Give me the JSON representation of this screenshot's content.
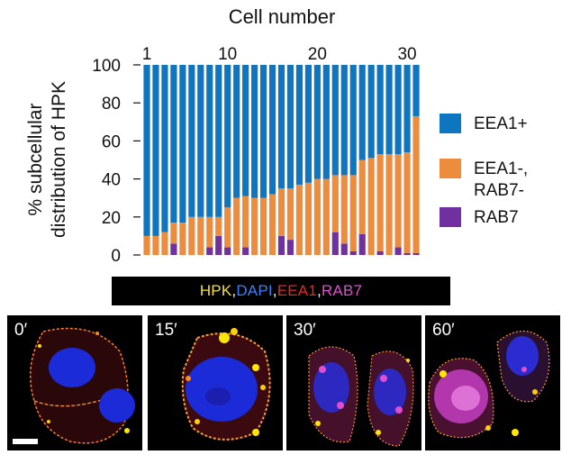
{
  "chart_data": {
    "type": "bar",
    "stacked": true,
    "title": "Cell number",
    "ylabel_lines": [
      "% subcellular",
      "distribution of HPK"
    ],
    "ylim": [
      0,
      100
    ],
    "yticks": [
      0,
      20,
      40,
      60,
      80,
      100
    ],
    "top_ticks": [
      1,
      10,
      20,
      30
    ],
    "categories": [
      1,
      2,
      3,
      4,
      5,
      6,
      7,
      8,
      9,
      10,
      11,
      12,
      13,
      14,
      15,
      16,
      17,
      18,
      19,
      20,
      21,
      22,
      23,
      24,
      25,
      26,
      27,
      28,
      29,
      30,
      31
    ],
    "series": [
      {
        "name": "RAB7",
        "color": "#7030a0",
        "values": [
          0,
          0,
          0,
          6,
          0,
          0,
          0,
          4,
          10,
          4,
          0,
          4,
          0,
          0,
          0,
          10,
          8,
          0,
          0,
          0,
          0,
          12,
          6,
          2,
          11,
          0,
          2,
          0,
          4,
          1,
          1
        ]
      },
      {
        "name": "EEA1-, RAB7-",
        "color": "#ee8c3d",
        "values": [
          10,
          10,
          12,
          11,
          17,
          20,
          20,
          16,
          10,
          21,
          30,
          27,
          30,
          30,
          32,
          25,
          27,
          37,
          38,
          40,
          40,
          30,
          36,
          40,
          39,
          51,
          51,
          53,
          49,
          53,
          72
        ]
      },
      {
        "name": "EEA1+",
        "color": "#0e76c0",
        "values": [
          90,
          90,
          88,
          83,
          83,
          80,
          80,
          80,
          80,
          75,
          70,
          69,
          70,
          70,
          68,
          65,
          65,
          63,
          62,
          60,
          60,
          58,
          58,
          58,
          50,
          49,
          47,
          47,
          47,
          46,
          27
        ]
      }
    ],
    "legend": {
      "placement": "right",
      "entries": [
        {
          "lines": [
            "EEA1+"
          ],
          "color": "#0e76c0"
        },
        {
          "lines": [
            "EEA1-,",
            "RAB7-"
          ],
          "color": "#ee8c3d"
        },
        {
          "lines": [
            "RAB7"
          ],
          "color": "#7030a0"
        }
      ]
    }
  },
  "stain_legend": [
    {
      "text": "HPK",
      "color": "#f3e23a"
    },
    {
      "text": ", ",
      "color": "#ffffff"
    },
    {
      "text": "DAPI",
      "color": "#3b82f6"
    },
    {
      "text": ", ",
      "color": "#ffffff"
    },
    {
      "text": "EEA1",
      "color": "#e12b24"
    },
    {
      "text": ", ",
      "color": "#ffffff"
    },
    {
      "text": "RAB7",
      "color": "#e14fd0"
    }
  ],
  "panels": [
    {
      "label": "0′"
    },
    {
      "label": "15′"
    },
    {
      "label": "30′"
    },
    {
      "label": "60′"
    }
  ]
}
